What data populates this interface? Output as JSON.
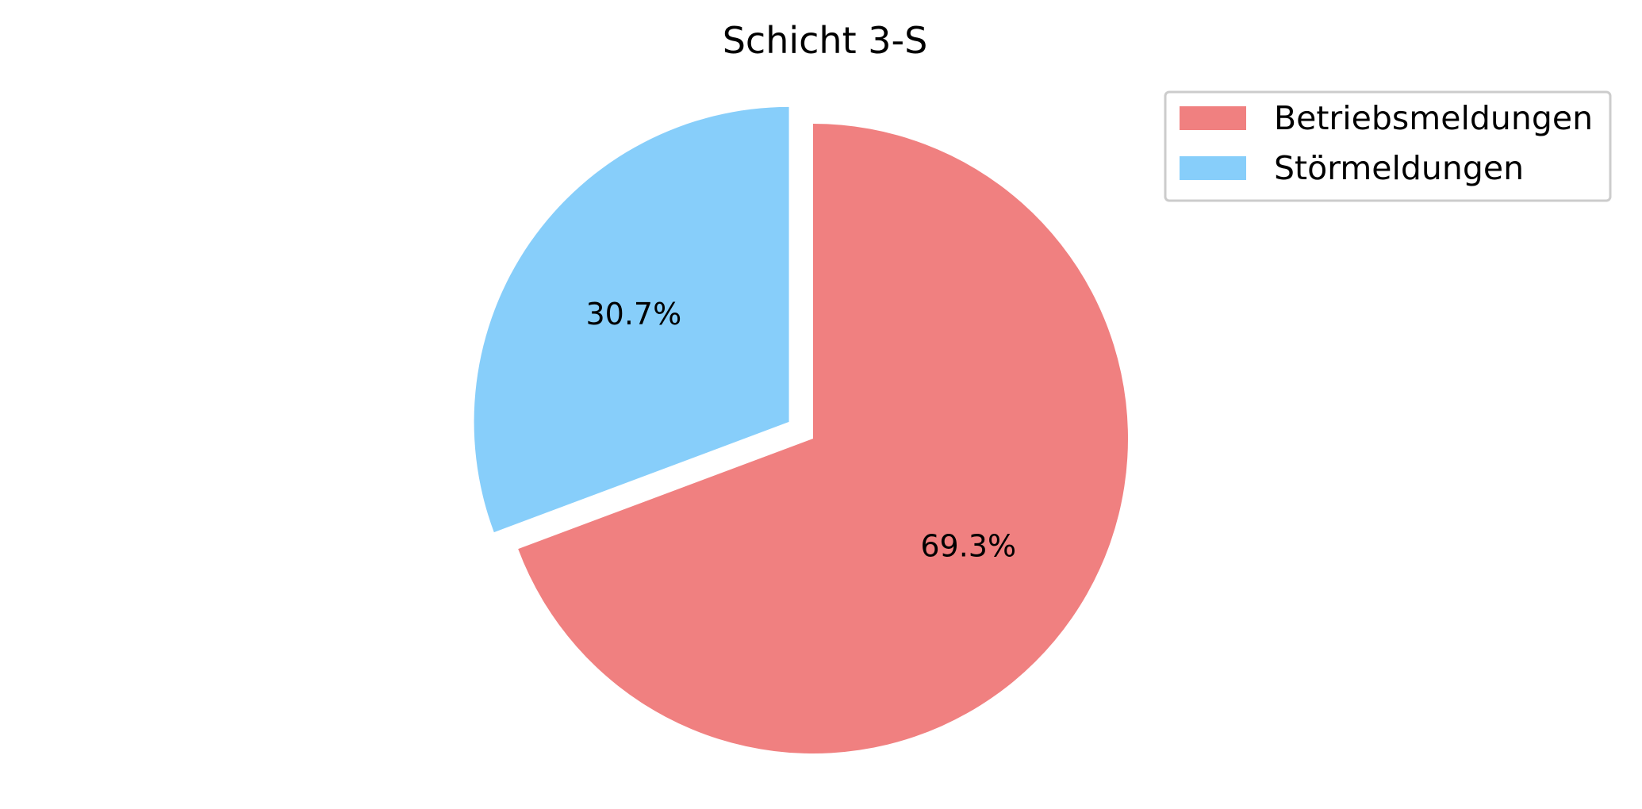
{
  "chart_data": {
    "type": "pie",
    "title": "Schicht 3-S",
    "categories": [
      "Betriebsmeldungen",
      "Störmeldungen"
    ],
    "values": [
      69.3,
      30.7
    ],
    "value_labels": [
      "69.3%",
      "30.7%"
    ],
    "colors": [
      "#f08080",
      "#87cefa"
    ],
    "exploded": [
      false,
      true
    ],
    "start_angle_deg": 90,
    "direction": "clockwise",
    "legend": {
      "position": "top-right",
      "entries": [
        "Betriebsmeldungen",
        "Störmeldungen"
      ]
    }
  }
}
